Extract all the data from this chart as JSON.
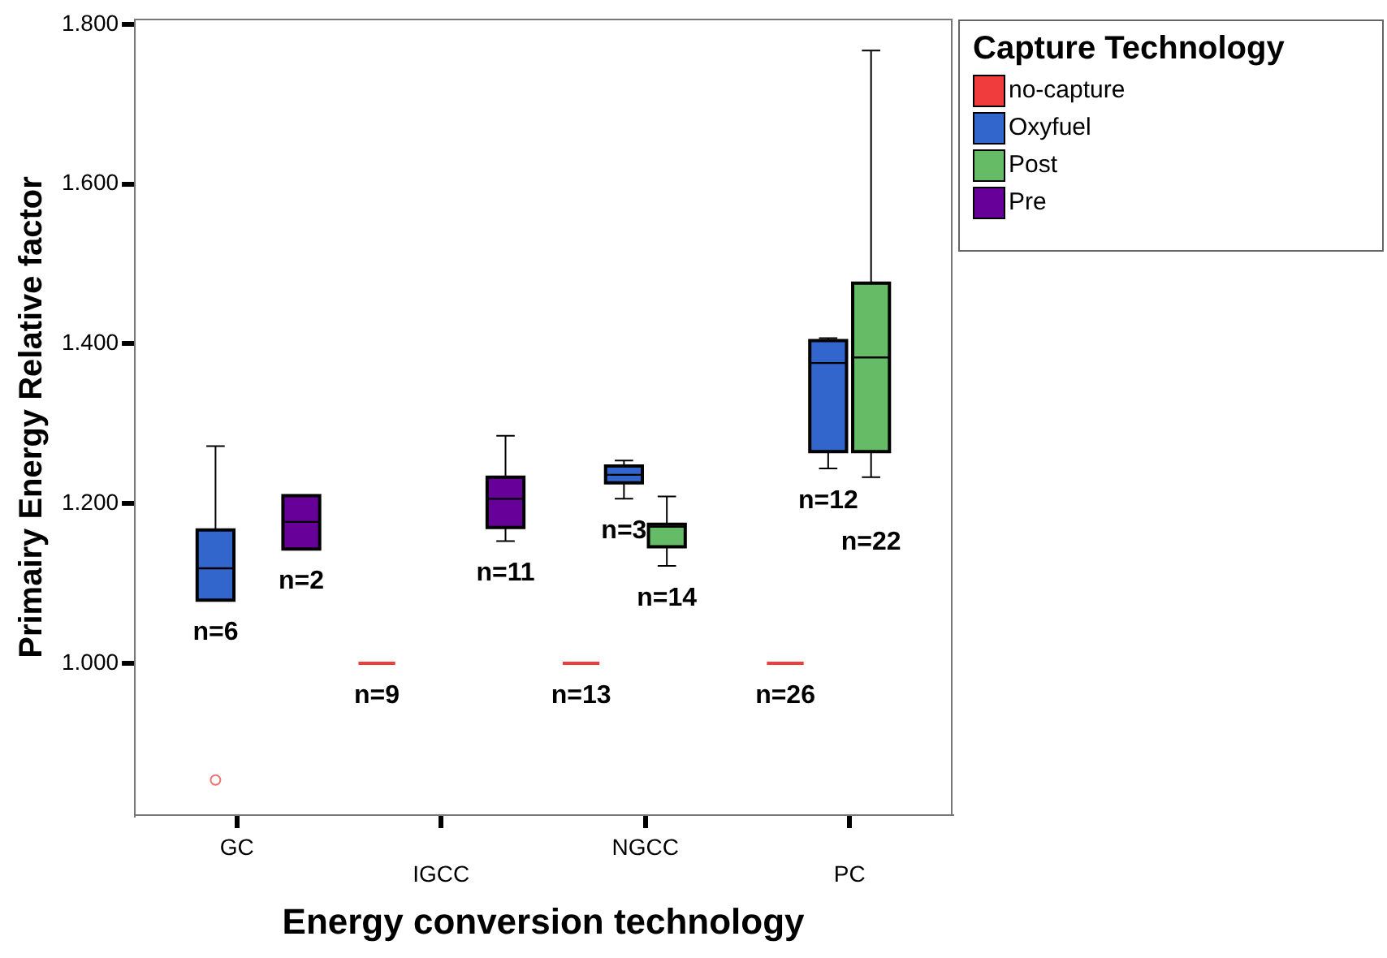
{
  "chart_data": {
    "type": "box",
    "xlabel": "Energy conversion technology",
    "ylabel": "Primairy Energy Relative factor",
    "legend_title": "Capture Technology",
    "legend": "top right",
    "grid": false,
    "categories": [
      "GC",
      "IGCC",
      "NGCC",
      "PC"
    ],
    "ylim": [
      0.81,
      1.806
    ],
    "yticks": [
      {
        "value": 1.0,
        "label": "1.000"
      },
      {
        "value": 1.2,
        "label": "1.200"
      },
      {
        "value": 1.4,
        "label": "1.400"
      },
      {
        "value": 1.6,
        "label": "1.600"
      },
      {
        "value": 1.8,
        "label": "1.800"
      }
    ],
    "series": [
      {
        "name": "no-capture",
        "color": "#f03c3c",
        "boxes": [
          null,
          {
            "low": 1.0,
            "q1": 1.0,
            "median": 1.0,
            "q3": 1.0,
            "high": 1.0
          },
          {
            "low": 1.0,
            "q1": 1.0,
            "median": 1.0,
            "q3": 1.0,
            "high": 1.0
          },
          {
            "low": 1.0,
            "q1": 1.0,
            "median": 1.0,
            "q3": 1.0,
            "high": 1.0
          }
        ]
      },
      {
        "name": "Oxyfuel",
        "color": "#3366cc",
        "boxes": [
          {
            "low": 1.079,
            "q1": 1.079,
            "median": 1.119,
            "q3": 1.167,
            "high": 1.272,
            "outliers": [
              0.854
            ]
          },
          null,
          {
            "low": 1.206,
            "q1": 1.226,
            "median": 1.236,
            "q3": 1.247,
            "high": 1.254
          },
          {
            "low": 1.244,
            "q1": 1.265,
            "median": 1.376,
            "q3": 1.404,
            "high": 1.407
          }
        ]
      },
      {
        "name": "Post",
        "color": "#66bb66",
        "boxes": [
          null,
          null,
          {
            "low": 1.122,
            "q1": 1.146,
            "median": 1.171,
            "q3": 1.174,
            "high": 1.209
          },
          {
            "low": 1.233,
            "q1": 1.265,
            "median": 1.383,
            "q3": 1.476,
            "high": 1.767
          }
        ]
      },
      {
        "name": "Pre",
        "color": "#660099",
        "boxes": [
          {
            "low": 1.143,
            "q1": 1.143,
            "median": 1.177,
            "q3": 1.21,
            "high": 1.21
          },
          {
            "low": 1.153,
            "q1": 1.17,
            "median": 1.206,
            "q3": 1.233,
            "high": 1.285
          },
          null,
          null
        ]
      }
    ],
    "annotations": [
      "n=9",
      "n=13",
      "n=26",
      "n=6",
      "n=3",
      "n=12",
      "n=14",
      "n=22",
      "n=2",
      "n=11"
    ]
  }
}
